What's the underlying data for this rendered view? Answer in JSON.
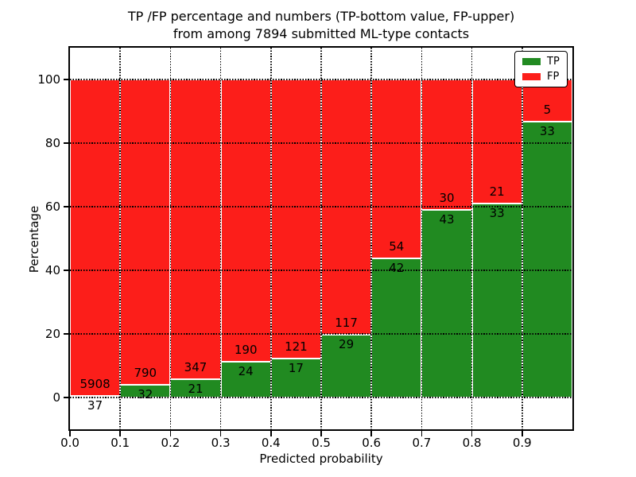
{
  "figure": {
    "title_line1": "TP /FP percentage and numbers (TP-bottom value, FP-upper)",
    "title_line2": "from among 7894 submitted ML-type contacts"
  },
  "chart_data": {
    "type": "bar",
    "stacked": true,
    "title": "TP /FP percentage and numbers (TP-bottom value, FP-upper) from among 7894 submitted ML-type contacts",
    "xlabel": "Predicted probability",
    "ylabel": "Percentage",
    "xlim": [
      0.0,
      1.0
    ],
    "ylim": [
      -10,
      110
    ],
    "grid": "dotted",
    "legend_position": "upper right",
    "total_contacts": 7894,
    "bin_width": 0.1,
    "bins": [
      0.0,
      0.1,
      0.2,
      0.3,
      0.4,
      0.5,
      0.6,
      0.7,
      0.8,
      0.9
    ],
    "xtick_labels": [
      "0.0",
      "0.1",
      "0.2",
      "0.3",
      "0.4",
      "0.5",
      "0.6",
      "0.7",
      "0.8",
      "0.9"
    ],
    "ytick_values": [
      0,
      20,
      40,
      60,
      80,
      100
    ],
    "series": [
      {
        "name": "TP",
        "color": "#218a21",
        "counts": [
          37,
          32,
          21,
          24,
          17,
          29,
          42,
          43,
          33,
          33
        ],
        "pct": [
          0.62,
          3.89,
          5.71,
          11.21,
          12.32,
          19.86,
          43.75,
          58.9,
          61.11,
          86.84
        ]
      },
      {
        "name": "FP",
        "color": "#fc1e1a",
        "counts": [
          5908,
          790,
          347,
          190,
          121,
          117,
          54,
          30,
          21,
          5
        ],
        "pct": [
          99.38,
          96.11,
          94.29,
          88.79,
          87.68,
          80.14,
          56.25,
          41.1,
          38.89,
          13.16
        ]
      }
    ]
  }
}
